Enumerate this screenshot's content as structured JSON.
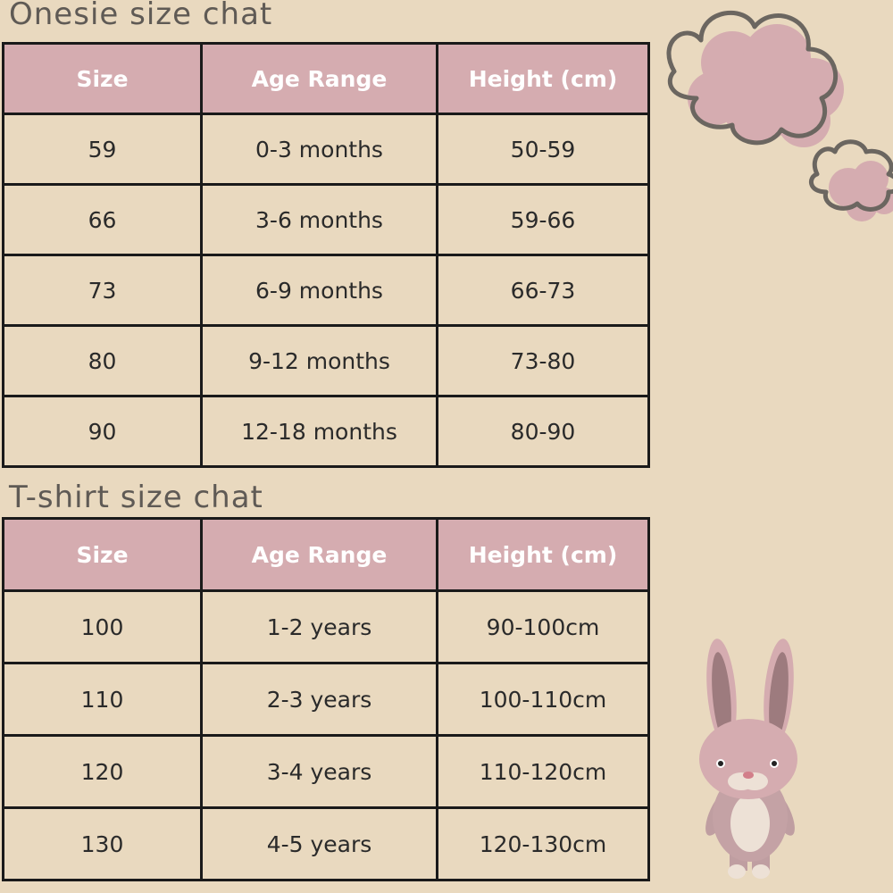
{
  "onesie": {
    "title": "Onesie size chat",
    "headers": [
      "Size",
      "Age Range",
      "Height (cm)"
    ],
    "rows": [
      [
        "59",
        "0-3 months",
        "50-59"
      ],
      [
        "66",
        "3-6 months",
        "59-66"
      ],
      [
        "73",
        "6-9 months",
        "66-73"
      ],
      [
        "80",
        "9-12 months",
        "73-80"
      ],
      [
        "90",
        "12-18 months",
        "80-90"
      ]
    ]
  },
  "tshirt": {
    "title": "T-shirt size chat",
    "headers": [
      "Size",
      "Age Range",
      "Height (cm)"
    ],
    "rows": [
      [
        "100",
        "1-2 years",
        "90-100cm"
      ],
      [
        "110",
        "2-3 years",
        "100-110cm"
      ],
      [
        "120",
        "3-4 years",
        "110-120cm"
      ],
      [
        "130",
        "4-5 years",
        "120-130cm"
      ]
    ]
  },
  "colors": {
    "background": "#e9d9bf",
    "header": "#d5acb0",
    "title": "#5f5a55"
  }
}
